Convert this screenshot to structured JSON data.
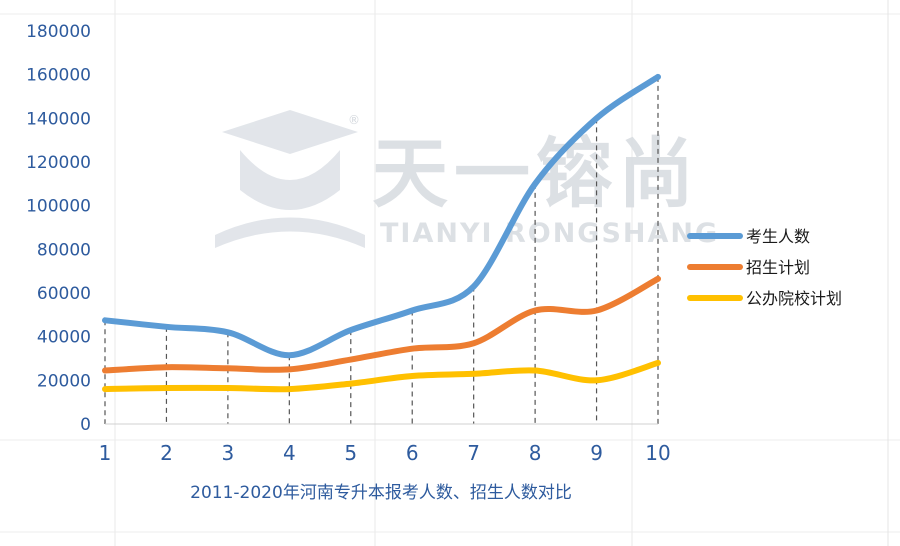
{
  "chart_data": {
    "type": "line",
    "title": "",
    "xlabel": "2011-2020年河南专升本报考人数、招生人数对比",
    "ylabel": "",
    "x": [
      1,
      2,
      3,
      4,
      5,
      6,
      7,
      8,
      9,
      10
    ],
    "ylim": [
      0,
      180000
    ],
    "yticks": [
      0,
      20000,
      40000,
      60000,
      80000,
      100000,
      120000,
      140000,
      160000,
      180000
    ],
    "grid": "vertical gridlines (light) + dashed drop lines",
    "legend_position": "right",
    "series": [
      {
        "name": "考生人数",
        "color": "#5b9bd5",
        "values": [
          47500,
          44500,
          42000,
          31500,
          43000,
          52000,
          63000,
          110000,
          140000,
          159000
        ]
      },
      {
        "name": "招生计划",
        "color": "#ed7d31",
        "values": [
          24500,
          26000,
          25500,
          25000,
          29500,
          34500,
          37000,
          52000,
          52000,
          66500
        ]
      },
      {
        "name": "公办院校计划",
        "color": "#ffc000",
        "values": [
          16000,
          16500,
          16500,
          16000,
          18500,
          22000,
          23000,
          24500,
          20000,
          28000
        ]
      }
    ]
  },
  "watermark": {
    "brand_cn": "天一镕尚",
    "brand_en": "TIANYI RONGSHANG",
    "registered": "®"
  }
}
